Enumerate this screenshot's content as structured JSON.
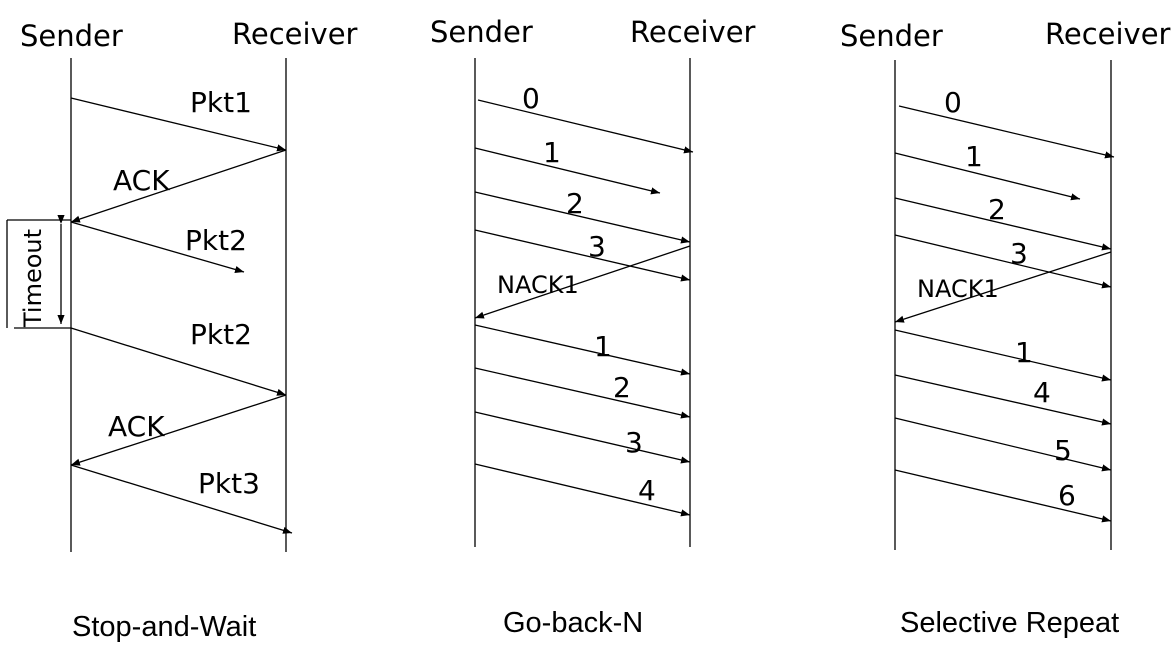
{
  "colors": {
    "stroke": "#000000",
    "background": "#ffffff"
  },
  "diagrams": [
    {
      "id": "stop-and-wait",
      "title": "Stop-and-Wait",
      "sender_label": "Sender",
      "receiver_label": "Receiver",
      "messages": [
        {
          "label": "Pkt1",
          "direction": "to-receiver"
        },
        {
          "label": "ACK",
          "direction": "to-sender"
        },
        {
          "label": "Pkt2",
          "direction": "to-receiver",
          "lost": true
        },
        {
          "label": "Pkt2",
          "direction": "to-receiver"
        },
        {
          "label": "ACK",
          "direction": "to-sender"
        },
        {
          "label": "Pkt3",
          "direction": "to-receiver"
        }
      ],
      "timeout_label": "Timeout"
    },
    {
      "id": "go-back-n",
      "title": "Go-back-N",
      "sender_label": "Sender",
      "receiver_label": "Receiver",
      "messages": [
        {
          "label": "0",
          "direction": "to-receiver"
        },
        {
          "label": "1",
          "direction": "to-receiver",
          "lost": true
        },
        {
          "label": "2",
          "direction": "to-receiver"
        },
        {
          "label": "3",
          "direction": "to-receiver"
        },
        {
          "label": "NACK1",
          "direction": "to-sender"
        },
        {
          "label": "1",
          "direction": "to-receiver"
        },
        {
          "label": "2",
          "direction": "to-receiver"
        },
        {
          "label": "3",
          "direction": "to-receiver"
        },
        {
          "label": "4",
          "direction": "to-receiver"
        }
      ]
    },
    {
      "id": "selective-repeat",
      "title": "Selective Repeat",
      "sender_label": "Sender",
      "receiver_label": "Receiver",
      "messages": [
        {
          "label": "0",
          "direction": "to-receiver"
        },
        {
          "label": "1",
          "direction": "to-receiver",
          "lost": true
        },
        {
          "label": "2",
          "direction": "to-receiver"
        },
        {
          "label": "3",
          "direction": "to-receiver"
        },
        {
          "label": "NACK1",
          "direction": "to-sender"
        },
        {
          "label": "1",
          "direction": "to-receiver"
        },
        {
          "label": "4",
          "direction": "to-receiver"
        },
        {
          "label": "5",
          "direction": "to-receiver"
        },
        {
          "label": "6",
          "direction": "to-receiver"
        }
      ]
    }
  ]
}
